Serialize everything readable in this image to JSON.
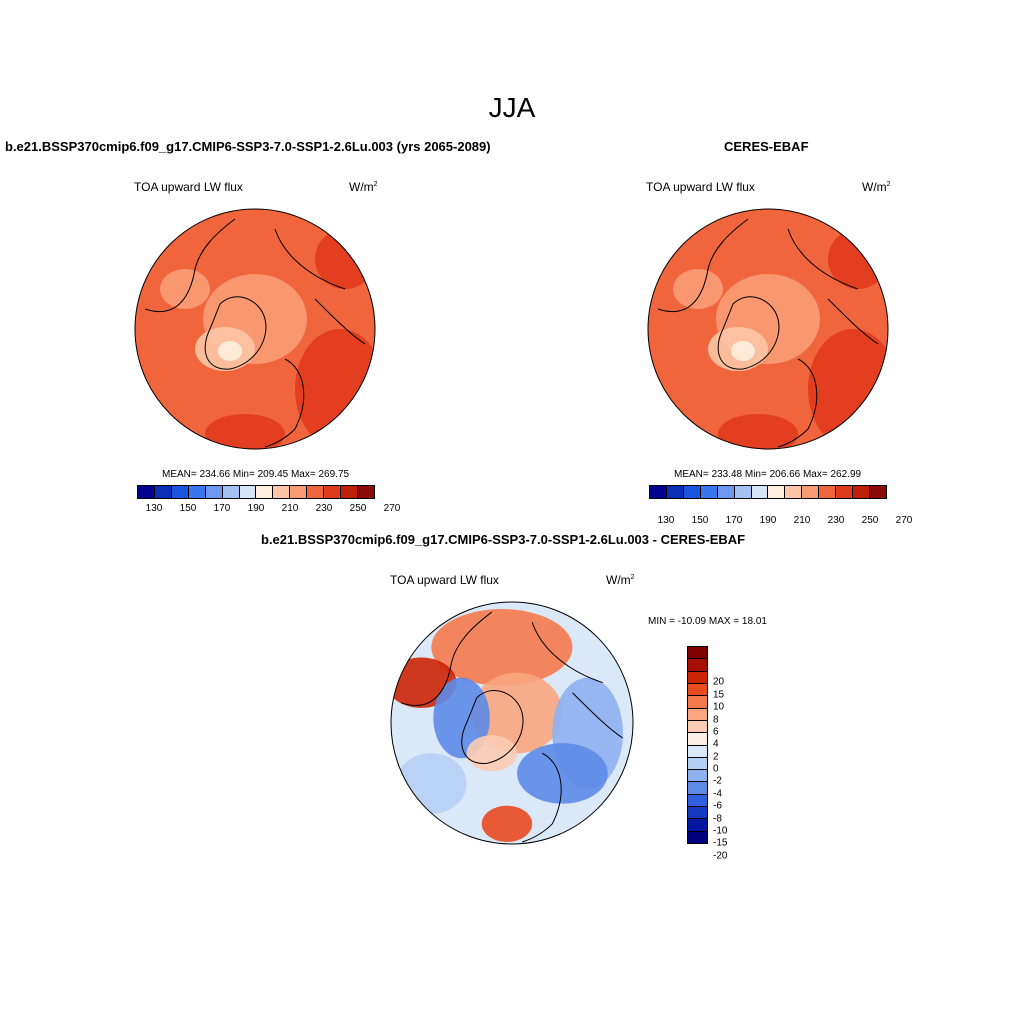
{
  "season_title": "JJA",
  "panels": [
    {
      "title": "b.e21.BSSP370cmip6.f09_g17.CMIP6-SSP3-7.0-SSP1-2.6Lu.003 (yrs 2065-2089)",
      "variable": "TOA upward LW flux",
      "units": "W/m",
      "units_exp": "2",
      "stats": "MEAN= 234.66  Min= 209.45  Max= 269.75",
      "base_color": "#f0653c",
      "colorbar_ticks": [
        "130",
        "150",
        "170",
        "190",
        "210",
        "230",
        "250",
        "270"
      ]
    },
    {
      "title": "CERES-EBAF",
      "variable": "TOA upward LW flux",
      "units": "W/m",
      "units_exp": "2",
      "stats": "MEAN= 233.48  Min= 206.66  Max= 262.99",
      "base_color": "#f0653c",
      "colorbar_ticks": [
        "130",
        "150",
        "170",
        "190",
        "210",
        "230",
        "250",
        "270"
      ]
    },
    {
      "title": "b.e21.BSSP370cmip6.f09_g17.CMIP6-SSP3-7.0-SSP1-2.6Lu.003 - CERES-EBAF",
      "variable": "TOA upward LW flux",
      "units": "W/m",
      "units_exp": "2",
      "stats": "MIN = -10.09 MAX =  18.01",
      "base_color": "#dbe8f8",
      "colorbar_ticks": [
        "20",
        "15",
        "10",
        "8",
        "6",
        "4",
        "2",
        "0",
        "-2",
        "-4",
        "-6",
        "-8",
        "-10",
        "-15",
        "-20"
      ]
    }
  ],
  "abs_colors": [
    "#00008f",
    "#0a2fb5",
    "#1b55dd",
    "#3b76ee",
    "#6f99f0",
    "#a4c0f5",
    "#d6e4f8",
    "#fdeedd",
    "#fcc5a6",
    "#f99c76",
    "#f0653c",
    "#e03a1c",
    "#c01f0a",
    "#8b0a0a"
  ],
  "diff_colors": [
    "#800000",
    "#a50f04",
    "#cc2505",
    "#e94a1f",
    "#f47a4d",
    "#f9a57f",
    "#fcccb2",
    "#fbeee3",
    "#dbe8f8",
    "#b6cff4",
    "#8db0ee",
    "#5d8be8",
    "#2f60dd",
    "#1438c0",
    "#03189e",
    "#00007f"
  ]
}
